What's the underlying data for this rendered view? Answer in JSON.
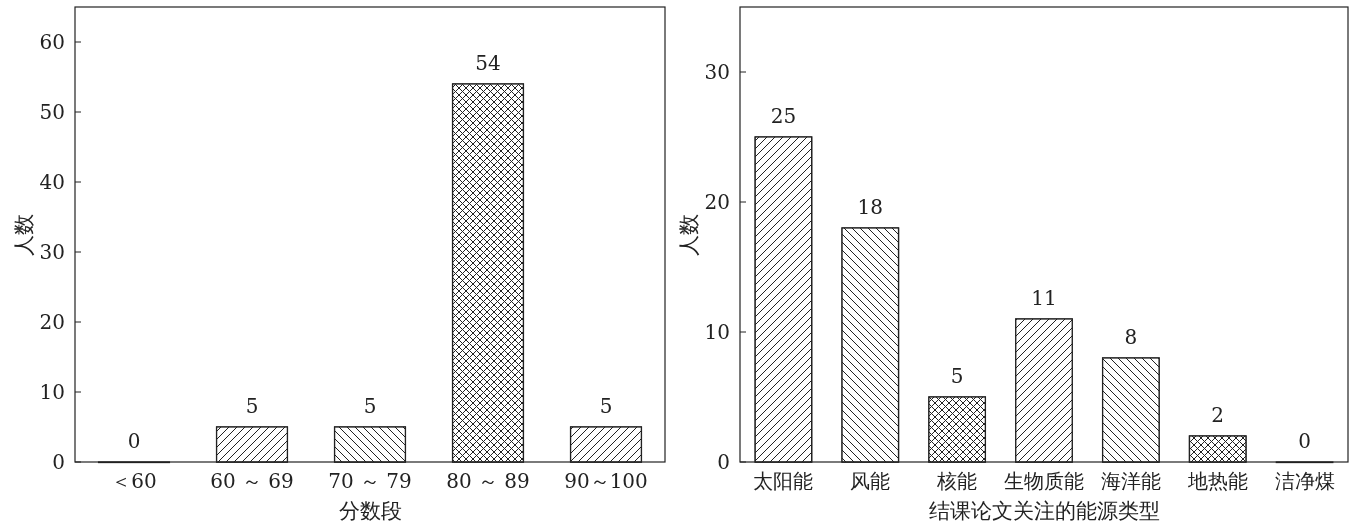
{
  "chart_data": [
    {
      "type": "bar",
      "xlabel": "分数段",
      "ylabel": "人数",
      "categories": [
        "＜60",
        "60 ～ 69",
        "70 ～ 79",
        "80 ～ 89",
        "90～100"
      ],
      "values": [
        0,
        5,
        5,
        54,
        5
      ],
      "ylim": [
        0,
        65
      ],
      "yticks": [
        0,
        10,
        20,
        30,
        40,
        50,
        60
      ],
      "data_labels": true
    },
    {
      "type": "bar",
      "xlabel": "结课论文关注的能源类型",
      "ylabel": "人数",
      "categories": [
        "太阳能",
        "风能",
        "核能",
        "生物质能",
        "海洋能",
        "地热能",
        "洁净煤"
      ],
      "values": [
        25,
        18,
        5,
        11,
        8,
        2,
        0
      ],
      "ylim": [
        0,
        35
      ],
      "yticks": [
        0,
        10,
        20,
        30
      ],
      "data_labels": true
    }
  ]
}
